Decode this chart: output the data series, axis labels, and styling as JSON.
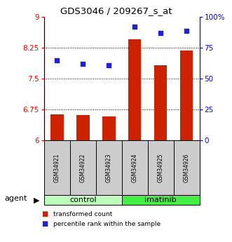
{
  "title": "GDS3046 / 209267_s_at",
  "categories": [
    "GSM34921",
    "GSM34922",
    "GSM34923",
    "GSM34924",
    "GSM34925",
    "GSM34926"
  ],
  "red_values": [
    6.63,
    6.61,
    6.58,
    8.45,
    7.82,
    8.18
  ],
  "blue_values": [
    65,
    62,
    61,
    92,
    87,
    89
  ],
  "ylim_left": [
    6,
    9
  ],
  "ylim_right": [
    0,
    100
  ],
  "yticks_left": [
    6,
    6.75,
    7.5,
    8.25,
    9
  ],
  "yticks_right": [
    0,
    25,
    50,
    75,
    100
  ],
  "ytick_labels_left": [
    "6",
    "6.75",
    "7.5",
    "8.25",
    "9"
  ],
  "ytick_labels_right": [
    "0",
    "25",
    "50",
    "75",
    "100%"
  ],
  "grid_lines": [
    6.75,
    7.5,
    8.25
  ],
  "group_labels": [
    "control",
    "imatinib"
  ],
  "agent_label": "agent",
  "legend": [
    "transformed count",
    "percentile rank within the sample"
  ],
  "bar_color": "#cc2200",
  "dot_color": "#2222cc",
  "control_color": "#bbffbb",
  "imatinib_color": "#44ee44",
  "bar_width": 0.5,
  "dot_size": 22,
  "gsm_box_color": "#cccccc"
}
